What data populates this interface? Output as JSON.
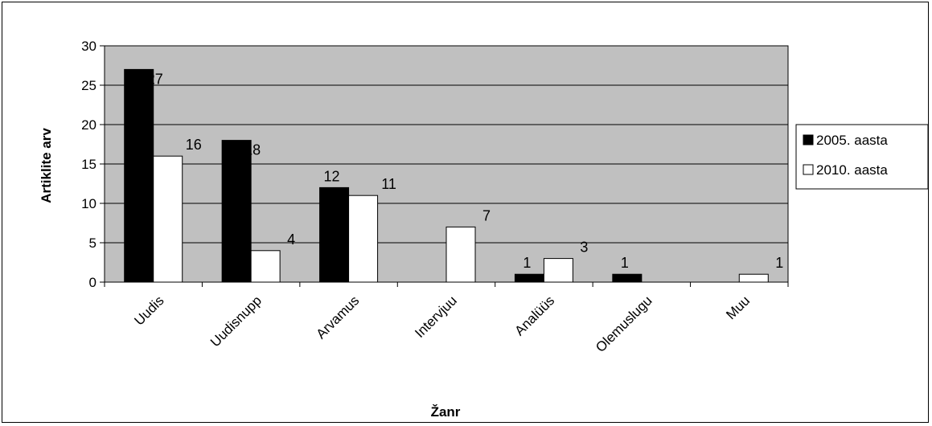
{
  "chart_data": {
    "type": "bar",
    "categories": [
      "Uudis",
      "Uudisnupp",
      "Arvamus",
      "Intervjuu",
      "Analüüs",
      "Olemuslugu",
      "Muu"
    ],
    "series": [
      {
        "name": "2005. aasta",
        "values": [
          27,
          18,
          12,
          0,
          1,
          1,
          0
        ],
        "labels": [
          "27",
          "18",
          "12",
          "",
          "1",
          "1",
          ""
        ],
        "color": "#000000"
      },
      {
        "name": "2010. aasta",
        "values": [
          16,
          4,
          11,
          7,
          3,
          0,
          1
        ],
        "labels": [
          "16",
          "4",
          "11",
          "7",
          "3",
          "",
          "1"
        ],
        "color": "#ffffff"
      }
    ],
    "xlabel": "Žanr",
    "ylabel": "Artiklite arv",
    "ylim": [
      0,
      30
    ],
    "yticks": [
      0,
      5,
      10,
      15,
      20,
      25,
      30
    ],
    "grid": true,
    "legend": "right",
    "plot_background": "#c0c0c0"
  }
}
